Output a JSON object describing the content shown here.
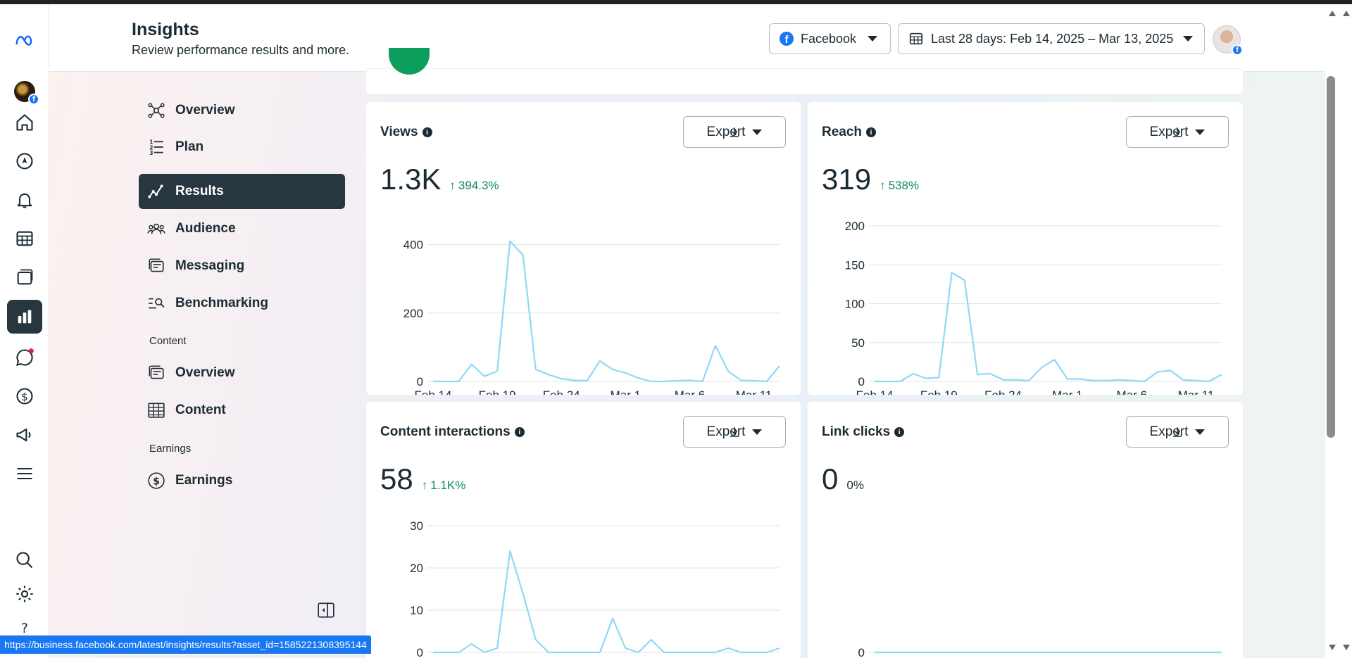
{
  "header": {
    "title": "Insights",
    "subtitle": "Review performance results and more.",
    "platform_label": "Facebook",
    "date_range_label": "Last 28 days: Feb 14, 2025 – Mar 13, 2025"
  },
  "rail": {
    "icons": [
      "meta-logo-icon",
      "page-avatar",
      "home-icon",
      "explore-icon",
      "notifications-icon",
      "planner-icon",
      "content-icon",
      "insights-icon",
      "inbox-icon",
      "monetization-icon",
      "ads-icon",
      "menu-icon",
      "search-icon",
      "settings-icon",
      "help-icon"
    ]
  },
  "nav": {
    "items": [
      {
        "label": "Overview"
      },
      {
        "label": "Plan"
      },
      {
        "label": "Results"
      },
      {
        "label": "Audience"
      },
      {
        "label": "Messaging"
      },
      {
        "label": "Benchmarking"
      }
    ],
    "content_section": "Content",
    "content_items": [
      {
        "label": "Overview"
      },
      {
        "label": "Content"
      }
    ],
    "earnings_section": "Earnings",
    "earnings_items": [
      {
        "label": "Earnings"
      }
    ]
  },
  "cards": {
    "export_label": "Export",
    "views": {
      "title": "Views",
      "value": "1.3K",
      "delta": "394.3%"
    },
    "reach": {
      "title": "Reach",
      "value": "319",
      "delta": "538%"
    },
    "interactions": {
      "title": "Content interactions",
      "value": "58",
      "delta": "1.1K%"
    },
    "link_clicks": {
      "title": "Link clicks",
      "value": "0",
      "delta": "0%"
    }
  },
  "status_url": "https://business.facebook.com/latest/insights/results?asset_id=1585221308395144",
  "colors": {
    "line": "#8ed8f8",
    "accent_dark": "#283640",
    "positive": "#118a5e"
  },
  "chart_data": [
    {
      "type": "line",
      "title": "Views",
      "x": [
        "Feb 14",
        "Feb 15",
        "Feb 16",
        "Feb 17",
        "Feb 18",
        "Feb 19",
        "Feb 20",
        "Feb 21",
        "Feb 22",
        "Feb 23",
        "Feb 24",
        "Feb 25",
        "Feb 26",
        "Feb 27",
        "Feb 28",
        "Mar 1",
        "Mar 2",
        "Mar 3",
        "Mar 4",
        "Mar 5",
        "Mar 6",
        "Mar 7",
        "Mar 8",
        "Mar 9",
        "Mar 10",
        "Mar 11",
        "Mar 12",
        "Mar 13"
      ],
      "values": [
        0,
        0,
        0,
        50,
        15,
        30,
        410,
        370,
        35,
        20,
        8,
        3,
        2,
        60,
        35,
        25,
        10,
        0,
        0,
        2,
        3,
        0,
        105,
        30,
        3,
        2,
        0,
        45
      ],
      "xticks": [
        "Feb 14",
        "Feb 19",
        "Feb 24",
        "Mar 1",
        "Mar 6",
        "Mar 11"
      ],
      "yticks": [
        0,
        200,
        400
      ],
      "ylim": [
        0,
        500
      ]
    },
    {
      "type": "line",
      "title": "Reach",
      "x": [
        "Feb 14",
        "Feb 15",
        "Feb 16",
        "Feb 17",
        "Feb 18",
        "Feb 19",
        "Feb 20",
        "Feb 21",
        "Feb 22",
        "Feb 23",
        "Feb 24",
        "Feb 25",
        "Feb 26",
        "Feb 27",
        "Feb 28",
        "Mar 1",
        "Mar 2",
        "Mar 3",
        "Mar 4",
        "Mar 5",
        "Mar 6",
        "Mar 7",
        "Mar 8",
        "Mar 9",
        "Mar 10",
        "Mar 11",
        "Mar 12",
        "Mar 13"
      ],
      "values": [
        0,
        0,
        0,
        10,
        4,
        5,
        140,
        130,
        9,
        10,
        2,
        2,
        1,
        18,
        28,
        3,
        3,
        1,
        1,
        2,
        1,
        0,
        12,
        14,
        2,
        1,
        0,
        9
      ],
      "xticks": [
        "Feb 14",
        "Feb 19",
        "Feb 24",
        "Mar 1",
        "Mar 6",
        "Mar 11"
      ],
      "yticks": [
        0,
        50,
        100,
        150,
        200
      ],
      "ylim": [
        0,
        200
      ]
    },
    {
      "type": "line",
      "title": "Content interactions",
      "x": [
        "Feb 14",
        "Feb 15",
        "Feb 16",
        "Feb 17",
        "Feb 18",
        "Feb 19",
        "Feb 20",
        "Feb 21",
        "Feb 22",
        "Feb 23",
        "Feb 24",
        "Feb 25",
        "Feb 26",
        "Feb 27",
        "Feb 28",
        "Mar 1",
        "Mar 2",
        "Mar 3",
        "Mar 4",
        "Mar 5",
        "Mar 6",
        "Mar 7",
        "Mar 8",
        "Mar 9",
        "Mar 10",
        "Mar 11",
        "Mar 12",
        "Mar 13"
      ],
      "values": [
        0,
        0,
        0,
        2,
        0,
        1,
        24,
        14,
        3,
        0,
        0,
        0,
        0,
        0,
        8,
        1,
        0,
        3,
        0,
        0,
        0,
        0,
        0,
        1,
        0,
        0,
        0,
        1
      ],
      "yticks": [
        0,
        10,
        20,
        30
      ],
      "ylim": [
        0,
        30
      ]
    },
    {
      "type": "line",
      "title": "Link clicks",
      "x": [
        "Feb 14",
        "Feb 15",
        "Feb 16",
        "Feb 17",
        "Feb 18",
        "Feb 19",
        "Feb 20",
        "Feb 21",
        "Feb 22",
        "Feb 23",
        "Feb 24",
        "Feb 25",
        "Feb 26",
        "Feb 27",
        "Feb 28",
        "Mar 1",
        "Mar 2",
        "Mar 3",
        "Mar 4",
        "Mar 5",
        "Mar 6",
        "Mar 7",
        "Mar 8",
        "Mar 9",
        "Mar 10",
        "Mar 11",
        "Mar 12",
        "Mar 13"
      ],
      "values": [
        0,
        0,
        0,
        0,
        0,
        0,
        0,
        0,
        0,
        0,
        0,
        0,
        0,
        0,
        0,
        0,
        0,
        0,
        0,
        0,
        0,
        0,
        0,
        0,
        0,
        0,
        0,
        0
      ],
      "yticks": [
        0
      ],
      "ylim": [
        0,
        1
      ]
    }
  ]
}
